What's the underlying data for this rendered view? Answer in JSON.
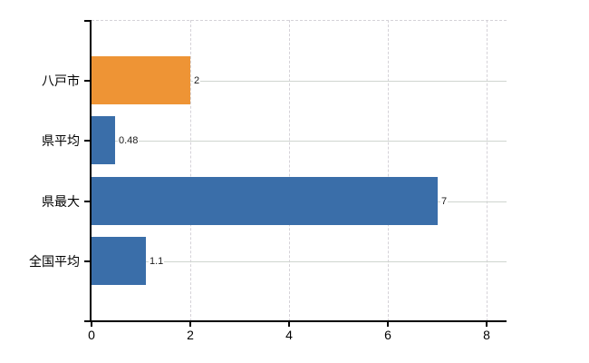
{
  "chart_data": {
    "type": "bar",
    "orientation": "horizontal",
    "categories": [
      "八戸市",
      "県平均",
      "県最大",
      "全国平均"
    ],
    "values": [
      2,
      0.48,
      7,
      1.1
    ],
    "value_labels": [
      "2",
      "0.48",
      "7",
      "1.1"
    ],
    "series": [
      {
        "name": "",
        "values": [
          2,
          0.48,
          7,
          1.1
        ]
      }
    ],
    "bar_colors": [
      "#ee9435",
      "#3a6ea9",
      "#3a6ea9",
      "#3a6ea9"
    ],
    "x_ticks": [
      0,
      2,
      4,
      6,
      8
    ],
    "x_tick_labels": [
      "0",
      "2",
      "4",
      "6",
      "8"
    ],
    "xlim": [
      0,
      8.4
    ],
    "grid": "on",
    "gridline_style": {
      "horizontal": "solid",
      "vertical": "dashed"
    },
    "legend_position": "none",
    "colors": {
      "background": "#ffffff",
      "axis": "#000000",
      "row_gridline": "#cfd5cf",
      "x_gridline": "#d5d2d8",
      "text": "#000000",
      "value_label_text": "#1a1a1a"
    }
  }
}
